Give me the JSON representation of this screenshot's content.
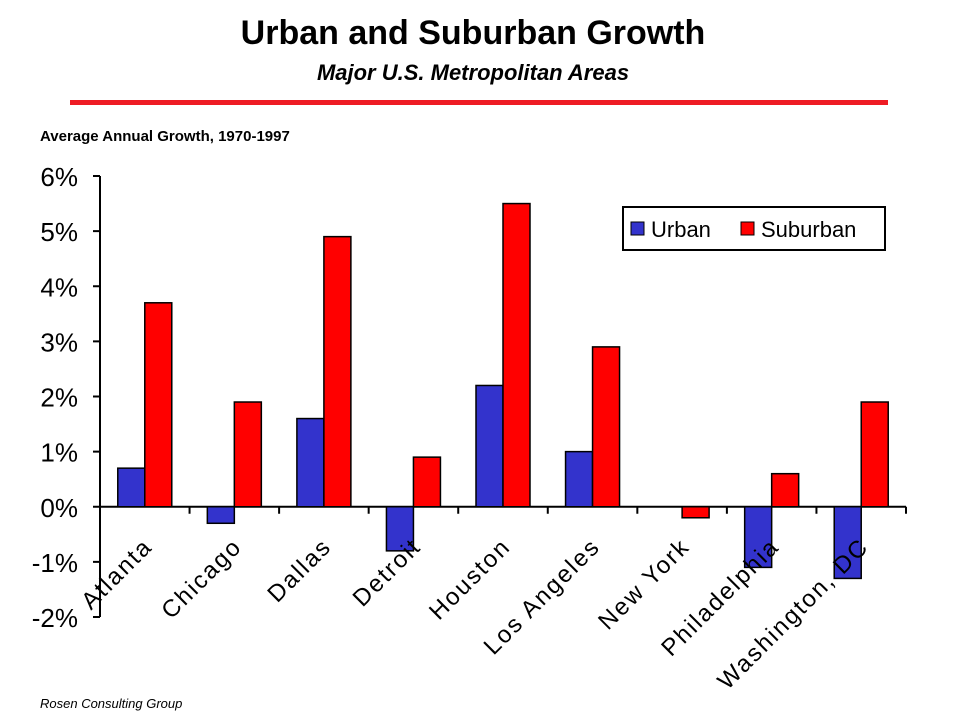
{
  "header": {
    "title": "Urban and Suburban Growth",
    "subtitle": "Major U.S. Metropolitan Areas",
    "note": "Average Annual Growth, 1970-1997"
  },
  "footer": {
    "source": "Rosen Consulting Group"
  },
  "colors": {
    "urban": "#3333cc",
    "suburban": "#ff0000",
    "rule": "#ee1c24"
  },
  "chart_data": {
    "type": "bar",
    "categories": [
      "Atlanta",
      "Chicago",
      "Dallas",
      "Detroit",
      "Houston",
      "Los Angeles",
      "New York",
      "Philadelphia",
      "Washington, DC"
    ],
    "series": [
      {
        "name": "Urban",
        "values": [
          0.7,
          -0.3,
          1.6,
          -0.8,
          2.2,
          1.0,
          0.0,
          -1.1,
          -1.3
        ]
      },
      {
        "name": "Suburban",
        "values": [
          3.7,
          1.9,
          4.9,
          0.9,
          5.5,
          2.9,
          -0.2,
          0.6,
          1.9
        ]
      }
    ],
    "ylim": [
      -2,
      6
    ],
    "yticks": [
      "-2%",
      "-1%",
      "0%",
      "1%",
      "2%",
      "3%",
      "4%",
      "5%",
      "6%"
    ],
    "ylabel": "",
    "xlabel": "",
    "legend_position": "top-right",
    "grid": false
  }
}
